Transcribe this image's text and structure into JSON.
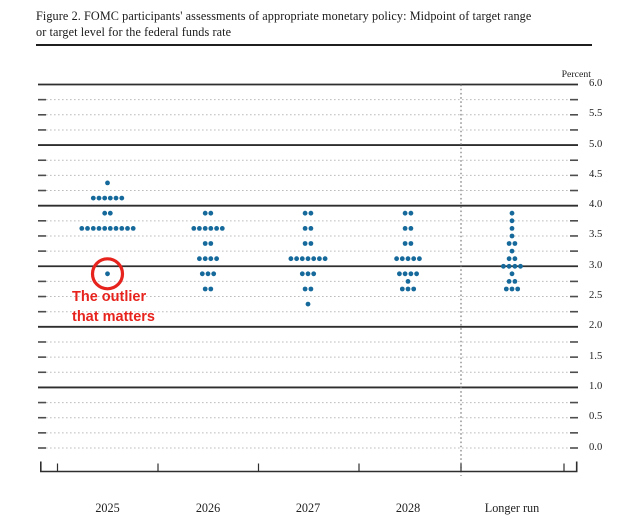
{
  "figure": {
    "title_line1": "Figure 2. FOMC participants' assessments of appropriate monetary policy: Midpoint of target range",
    "title_line2": "or target level for the federal funds rate"
  },
  "chart_data": {
    "type": "scatter",
    "subtype": "fomc-dot-plot",
    "title": "Figure 2. FOMC participants' assessments of appropriate monetary policy: Midpoint of target range or target level for the federal funds rate",
    "ylabel": "Percent",
    "ylim": [
      0.0,
      6.0
    ],
    "gridline_interval": 0.25,
    "grid": "solid lines at integers 1-6, dotted lines at quarter points and 0.0",
    "legend_position": "none",
    "y_tick_labels": [
      "6.0",
      "5.5",
      "5.0",
      "4.5",
      "4.0",
      "3.5",
      "3.0",
      "2.5",
      "2.0",
      "1.5",
      "1.0",
      "0.5",
      "0.0"
    ],
    "categories": [
      "2025",
      "2026",
      "2027",
      "2028",
      "Longer run"
    ],
    "series": [
      {
        "name": "2025",
        "dots": [
          {
            "value": 4.375,
            "count": 1
          },
          {
            "value": 4.125,
            "count": 6
          },
          {
            "value": 3.875,
            "count": 2
          },
          {
            "value": 3.625,
            "count": 10
          },
          {
            "value": 2.875,
            "count": 1
          }
        ]
      },
      {
        "name": "2026",
        "dots": [
          {
            "value": 3.875,
            "count": 2
          },
          {
            "value": 3.625,
            "count": 6
          },
          {
            "value": 3.375,
            "count": 2
          },
          {
            "value": 3.125,
            "count": 4
          },
          {
            "value": 2.875,
            "count": 3
          },
          {
            "value": 2.625,
            "count": 2
          }
        ]
      },
      {
        "name": "2027",
        "dots": [
          {
            "value": 3.875,
            "count": 2
          },
          {
            "value": 3.625,
            "count": 2
          },
          {
            "value": 3.375,
            "count": 2
          },
          {
            "value": 3.125,
            "count": 7
          },
          {
            "value": 2.875,
            "count": 3
          },
          {
            "value": 2.625,
            "count": 2
          },
          {
            "value": 2.375,
            "count": 1
          }
        ]
      },
      {
        "name": "2028",
        "dots": [
          {
            "value": 3.875,
            "count": 2
          },
          {
            "value": 3.625,
            "count": 2
          },
          {
            "value": 3.375,
            "count": 2
          },
          {
            "value": 3.125,
            "count": 5
          },
          {
            "value": 2.875,
            "count": 4
          },
          {
            "value": 2.75,
            "count": 1
          },
          {
            "value": 2.625,
            "count": 3
          }
        ]
      },
      {
        "name": "Longer run",
        "dots": [
          {
            "value": 3.875,
            "count": 1
          },
          {
            "value": 3.75,
            "count": 1
          },
          {
            "value": 3.625,
            "count": 1
          },
          {
            "value": 3.5,
            "count": 1
          },
          {
            "value": 3.375,
            "count": 2
          },
          {
            "value": 3.25,
            "count": 1
          },
          {
            "value": 3.125,
            "count": 2
          },
          {
            "value": 3.0,
            "count": 4
          },
          {
            "value": 2.875,
            "count": 1
          },
          {
            "value": 2.75,
            "count": 2
          },
          {
            "value": 2.625,
            "count": 3
          }
        ]
      }
    ],
    "annotation": {
      "line1": "The outlier",
      "line2": "that matters",
      "target_category": "2025",
      "target_value": 2.875
    },
    "colors": {
      "dot": "#15699b",
      "annotation": "#e7231d",
      "solid_gridline": "#2e2e2e",
      "dotted_gridline": "#bcbcbc"
    }
  }
}
